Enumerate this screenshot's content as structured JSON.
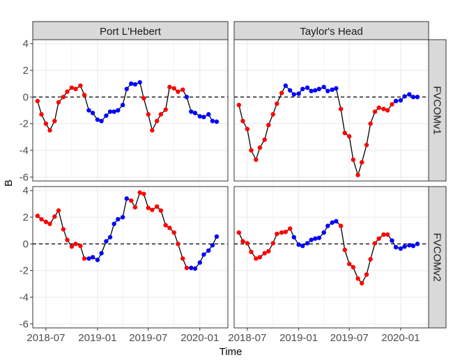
{
  "chart_data": {
    "type": "line",
    "xlabel": "Time",
    "ylabel": "B",
    "ylim": [
      -6.3,
      4.3
    ],
    "y_ticks": [
      4,
      2,
      0,
      -2,
      -4,
      -6
    ],
    "y_tick_labels": [
      "4",
      "2",
      "0",
      "-2",
      "-4",
      "-6"
    ],
    "x_ticks": [
      "2018-07",
      "2019-01",
      "2019-07",
      "2020-01"
    ],
    "xlim": [
      "2018-05-15",
      "2020-04-10"
    ],
    "reference_line": 0,
    "grid": true,
    "legend": "none",
    "facet_columns": [
      "Port L'Hebert",
      "Taylor's Head"
    ],
    "facet_rows": [
      "FVCOMv1",
      "FVCOMv2"
    ],
    "colors": {
      "positive": "#ff0000",
      "negative": "#0000ff",
      "line": "#000000",
      "strip_fill": "#d9d9d9",
      "grid": "#ebebeb"
    },
    "x": [
      "2018-06",
      "2018-06-15",
      "2018-07",
      "2018-07-15",
      "2018-08",
      "2018-08-15",
      "2018-09",
      "2018-09-15",
      "2018-10",
      "2018-10-15",
      "2018-11",
      "2018-11-15",
      "2018-12",
      "2018-12-15",
      "2019-01",
      "2019-01-15",
      "2019-02",
      "2019-02-15",
      "2019-03",
      "2019-03-15",
      "2019-04",
      "2019-04-15",
      "2019-05",
      "2019-05-15",
      "2019-06",
      "2019-06-15",
      "2019-07",
      "2019-07-15",
      "2019-08",
      "2019-08-15",
      "2019-09",
      "2019-09-15",
      "2019-10",
      "2019-10-15",
      "2019-11",
      "2019-11-15",
      "2019-12",
      "2019-12-15",
      "2020-01",
      "2020-01-15",
      "2020-02",
      "2020-02-15",
      "2020-03"
    ],
    "panels": [
      {
        "row": "FVCOMv1",
        "column": "Port L'Hebert",
        "colors": "rrrrrrrrrrrrbbbbbbbbbbbbbrrrrrrrrrrbbbbbbbbb",
        "values": [
          -0.3,
          -1.3,
          -2.0,
          -2.5,
          -1.8,
          -0.4,
          0.0,
          0.4,
          0.7,
          0.6,
          0.85,
          0.15,
          -1.0,
          -1.2,
          -1.7,
          -1.8,
          -1.4,
          -1.1,
          -1.1,
          -1.0,
          -0.6,
          0.6,
          1.0,
          0.95,
          1.1,
          -0.1,
          -1.3,
          -2.5,
          -1.8,
          -1.3,
          -0.95,
          0.75,
          0.65,
          0.4,
          0.55,
          0.0,
          -1.1,
          -1.2,
          -1.45,
          -1.5,
          -1.3,
          -1.8,
          -1.85
        ]
      },
      {
        "row": "FVCOMv1",
        "column": "Taylor's Head",
        "colors": "rrrrrrrrrrrbbbbbbbbbbbbbrrrrrrrrrrrrrbbbbbbbbb",
        "values": [
          -0.6,
          -1.8,
          -2.4,
          -4.0,
          -4.7,
          -3.8,
          -3.2,
          -2.1,
          -1.3,
          -0.5,
          0.3,
          0.85,
          0.5,
          0.2,
          0.25,
          0.6,
          0.7,
          0.45,
          0.5,
          0.6,
          0.75,
          0.45,
          0.55,
          0.65,
          -0.9,
          -2.7,
          -2.95,
          -4.7,
          -5.85,
          -4.9,
          -3.6,
          -2.0,
          -1.1,
          -0.8,
          -0.9,
          -1.0,
          -0.55,
          -0.3,
          -0.25,
          0.05,
          0.2,
          0.0,
          0.0
        ]
      },
      {
        "row": "FVCOMv2",
        "column": "Port L'Hebert",
        "colors": "rrrrrrrrrrrrbbbbbbbbbbrrrrrrrrrrrrrrbbbbbbbb",
        "values": [
          2.1,
          1.85,
          1.65,
          1.5,
          2.05,
          2.5,
          1.1,
          0.3,
          -0.2,
          0.0,
          -0.15,
          -1.1,
          -1.1,
          -1.0,
          -1.2,
          -0.7,
          0.2,
          0.5,
          1.5,
          1.85,
          2.0,
          3.4,
          3.25,
          2.75,
          3.85,
          3.75,
          2.7,
          2.55,
          2.8,
          2.5,
          1.4,
          1.2,
          0.85,
          0.0,
          -1.1,
          -1.8,
          -1.8,
          -1.85,
          -1.4,
          -0.8,
          -0.5,
          -0.1,
          0.55
        ]
      },
      {
        "row": "FVCOMv2",
        "column": "Taylor's Head",
        "colors": "rrrrrrrrrrrrrbbbbbbbbbbbrrrrrrrrrrrrbbbbbbbb",
        "values": [
          0.85,
          0.2,
          0.05,
          -0.6,
          -1.1,
          -1.0,
          -0.7,
          -0.55,
          0.05,
          0.75,
          0.85,
          0.9,
          1.15,
          0.5,
          -0.05,
          -0.15,
          0.05,
          0.3,
          0.4,
          0.45,
          0.85,
          1.35,
          1.6,
          1.7,
          1.35,
          -0.45,
          -1.5,
          -1.75,
          -2.6,
          -2.95,
          -2.3,
          -1.15,
          0.05,
          0.4,
          0.7,
          0.7,
          0.25,
          -0.25,
          -0.35,
          -0.2,
          -0.1,
          -0.15,
          0.0
        ]
      }
    ]
  }
}
